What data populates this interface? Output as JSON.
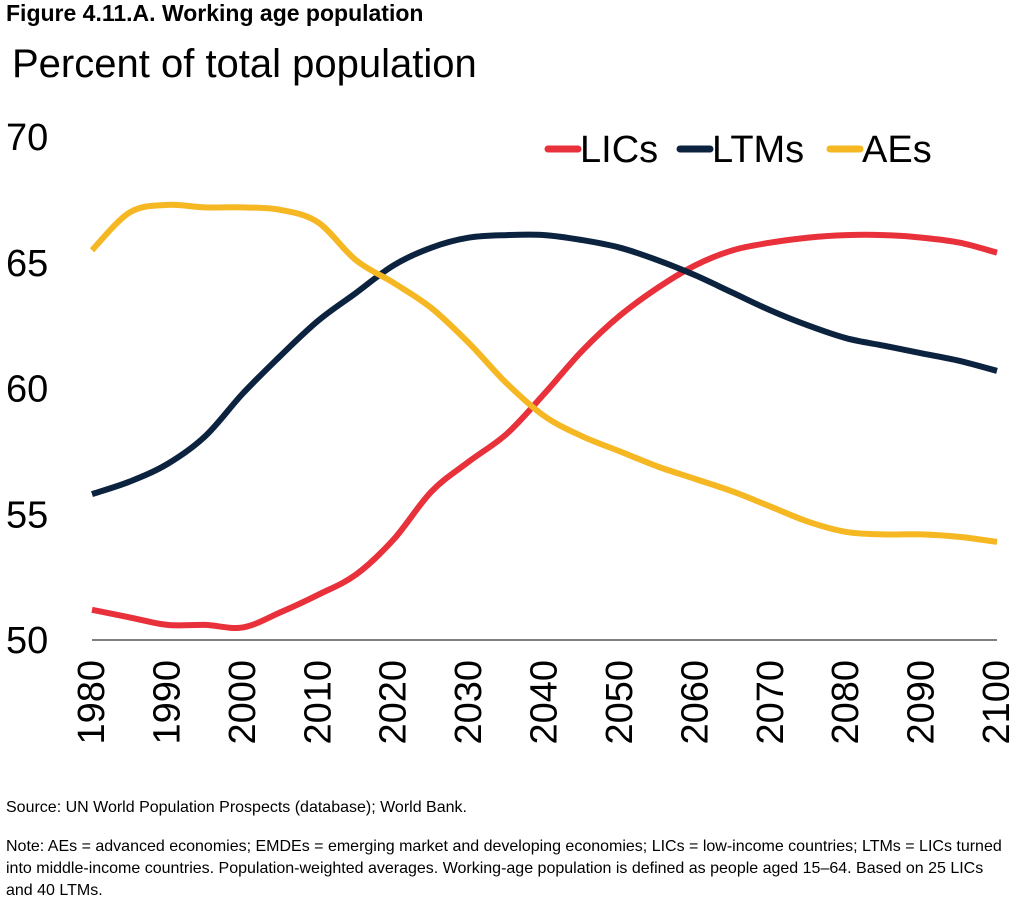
{
  "figure_title": "Figure 4.11.A. Working age population",
  "subtitle": "Percent of total population",
  "source": "Source: UN World Population Prospects (database); World Bank.",
  "note": "Note: AEs = advanced economies; EMDEs = emerging market and developing economies; LICs = low-income countries; LTMs = LICs turned into middle-income countries. Population-weighted averages. Working-age population is defined as people aged 15–64. Based on 25 LICs and 40 LTMs.",
  "chart_data": {
    "type": "line",
    "title": "",
    "xlabel": "",
    "ylabel": "",
    "xlim": [
      1980,
      2100
    ],
    "ylim": [
      50,
      70
    ],
    "x_ticks": [
      1980,
      1990,
      2000,
      2010,
      2020,
      2030,
      2040,
      2050,
      2060,
      2070,
      2080,
      2090,
      2100
    ],
    "y_ticks": [
      50,
      55,
      60,
      65,
      70
    ],
    "grid": false,
    "legend": "top-right",
    "x": [
      1980,
      1985,
      1990,
      1995,
      2000,
      2005,
      2010,
      2015,
      2020,
      2025,
      2030,
      2035,
      2040,
      2045,
      2050,
      2055,
      2060,
      2065,
      2070,
      2075,
      2080,
      2085,
      2090,
      2095,
      2100
    ],
    "series": [
      {
        "name": "LICs",
        "color": "#e8313a",
        "values": [
          51.2,
          50.9,
          50.6,
          50.6,
          50.5,
          51.1,
          51.8,
          52.6,
          54.0,
          55.9,
          57.1,
          58.2,
          59.8,
          61.5,
          62.9,
          64.0,
          64.9,
          65.5,
          65.8,
          66.0,
          66.1,
          66.1,
          66.0,
          65.8,
          65.4
        ]
      },
      {
        "name": "LTMs",
        "color": "#0c2340",
        "values": [
          55.8,
          56.3,
          57.0,
          58.1,
          59.8,
          61.3,
          62.7,
          63.8,
          64.9,
          65.6,
          66.0,
          66.1,
          66.1,
          65.9,
          65.6,
          65.1,
          64.5,
          63.8,
          63.1,
          62.5,
          62.0,
          61.7,
          61.4,
          61.1,
          60.7
        ]
      },
      {
        "name": "AEs",
        "color": "#f5b722",
        "values": [
          65.5,
          67.0,
          67.3,
          67.2,
          67.2,
          67.1,
          66.6,
          65.1,
          64.2,
          63.2,
          61.8,
          60.2,
          58.9,
          58.1,
          57.5,
          56.9,
          56.4,
          55.9,
          55.3,
          54.7,
          54.3,
          54.2,
          54.2,
          54.1,
          53.9
        ]
      }
    ]
  }
}
